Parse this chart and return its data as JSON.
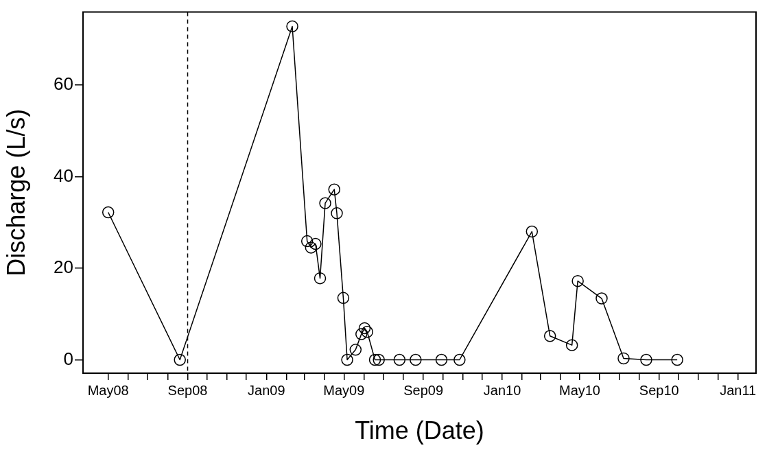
{
  "chart_data": {
    "type": "line",
    "xlabel": "Time (Date)",
    "ylabel": "Discharge (L/s)",
    "x": [
      "2008-05-01",
      "2008-08-20",
      "2009-02-10",
      "2009-03-05",
      "2009-03-11",
      "2009-03-18",
      "2009-03-25",
      "2009-04-02",
      "2009-04-16",
      "2009-04-20",
      "2009-04-30",
      "2009-05-06",
      "2009-05-19",
      "2009-05-28",
      "2009-06-02",
      "2009-06-06",
      "2009-06-18",
      "2009-06-24",
      "2009-07-26",
      "2009-08-20",
      "2009-09-29",
      "2009-10-27",
      "2010-02-16",
      "2010-03-16",
      "2010-04-19",
      "2010-04-28",
      "2010-06-04",
      "2010-07-08",
      "2010-08-12",
      "2010-09-29"
    ],
    "series": [
      {
        "color": "#000000",
        "values": [
          32.2,
          0,
          72.8,
          25.9,
          24.5,
          25.3,
          17.8,
          34.2,
          37.2,
          32.0,
          13.5,
          0,
          2.2,
          5.6,
          6.9,
          6.1,
          0,
          0,
          0,
          0,
          0,
          0,
          28.0,
          5.2,
          3.2,
          17.2,
          13.4,
          0.3,
          0,
          0
        ]
      }
    ],
    "xlim": [
      "2008-03-23",
      "2011-01-29"
    ],
    "xticks": [
      {
        "value": "2008-05-01",
        "label": "May08"
      },
      {
        "value": "2008-06-01",
        "label": null
      },
      {
        "value": "2008-07-01",
        "label": null
      },
      {
        "value": "2008-08-01",
        "label": null
      },
      {
        "value": "2008-09-01",
        "label": "Sep08"
      },
      {
        "value": "2008-10-01",
        "label": null
      },
      {
        "value": "2008-11-01",
        "label": null
      },
      {
        "value": "2008-12-01",
        "label": null
      },
      {
        "value": "2009-01-01",
        "label": "Jan09"
      },
      {
        "value": "2009-02-01",
        "label": null
      },
      {
        "value": "2009-03-01",
        "label": null
      },
      {
        "value": "2009-04-01",
        "label": null
      },
      {
        "value": "2009-05-01",
        "label": "May09"
      },
      {
        "value": "2009-06-01",
        "label": null
      },
      {
        "value": "2009-07-01",
        "label": null
      },
      {
        "value": "2009-08-01",
        "label": null
      },
      {
        "value": "2009-09-01",
        "label": "Sep09"
      },
      {
        "value": "2009-10-01",
        "label": null
      },
      {
        "value": "2009-11-01",
        "label": null
      },
      {
        "value": "2009-12-01",
        "label": null
      },
      {
        "value": "2010-01-01",
        "label": "Jan10"
      },
      {
        "value": "2010-02-01",
        "label": null
      },
      {
        "value": "2010-03-01",
        "label": null
      },
      {
        "value": "2010-04-01",
        "label": null
      },
      {
        "value": "2010-05-01",
        "label": "May10"
      },
      {
        "value": "2010-06-01",
        "label": null
      },
      {
        "value": "2010-07-01",
        "label": null
      },
      {
        "value": "2010-08-01",
        "label": null
      },
      {
        "value": "2010-09-01",
        "label": "Sep10"
      },
      {
        "value": "2010-10-01",
        "label": null
      },
      {
        "value": "2010-11-01",
        "label": null
      },
      {
        "value": "2010-12-01",
        "label": null
      },
      {
        "value": "2011-01-01",
        "label": "Jan11"
      }
    ],
    "ylim": [
      -2.92,
      75.92
    ],
    "yticks": [
      0,
      20,
      40,
      60
    ],
    "ref_lines": [
      {
        "axis": "x",
        "value": "2008-09-01",
        "line_style": "dashed",
        "color": "#000000"
      }
    ],
    "marker": "circle",
    "line_style": "solid",
    "grid": false,
    "legend": false
  }
}
